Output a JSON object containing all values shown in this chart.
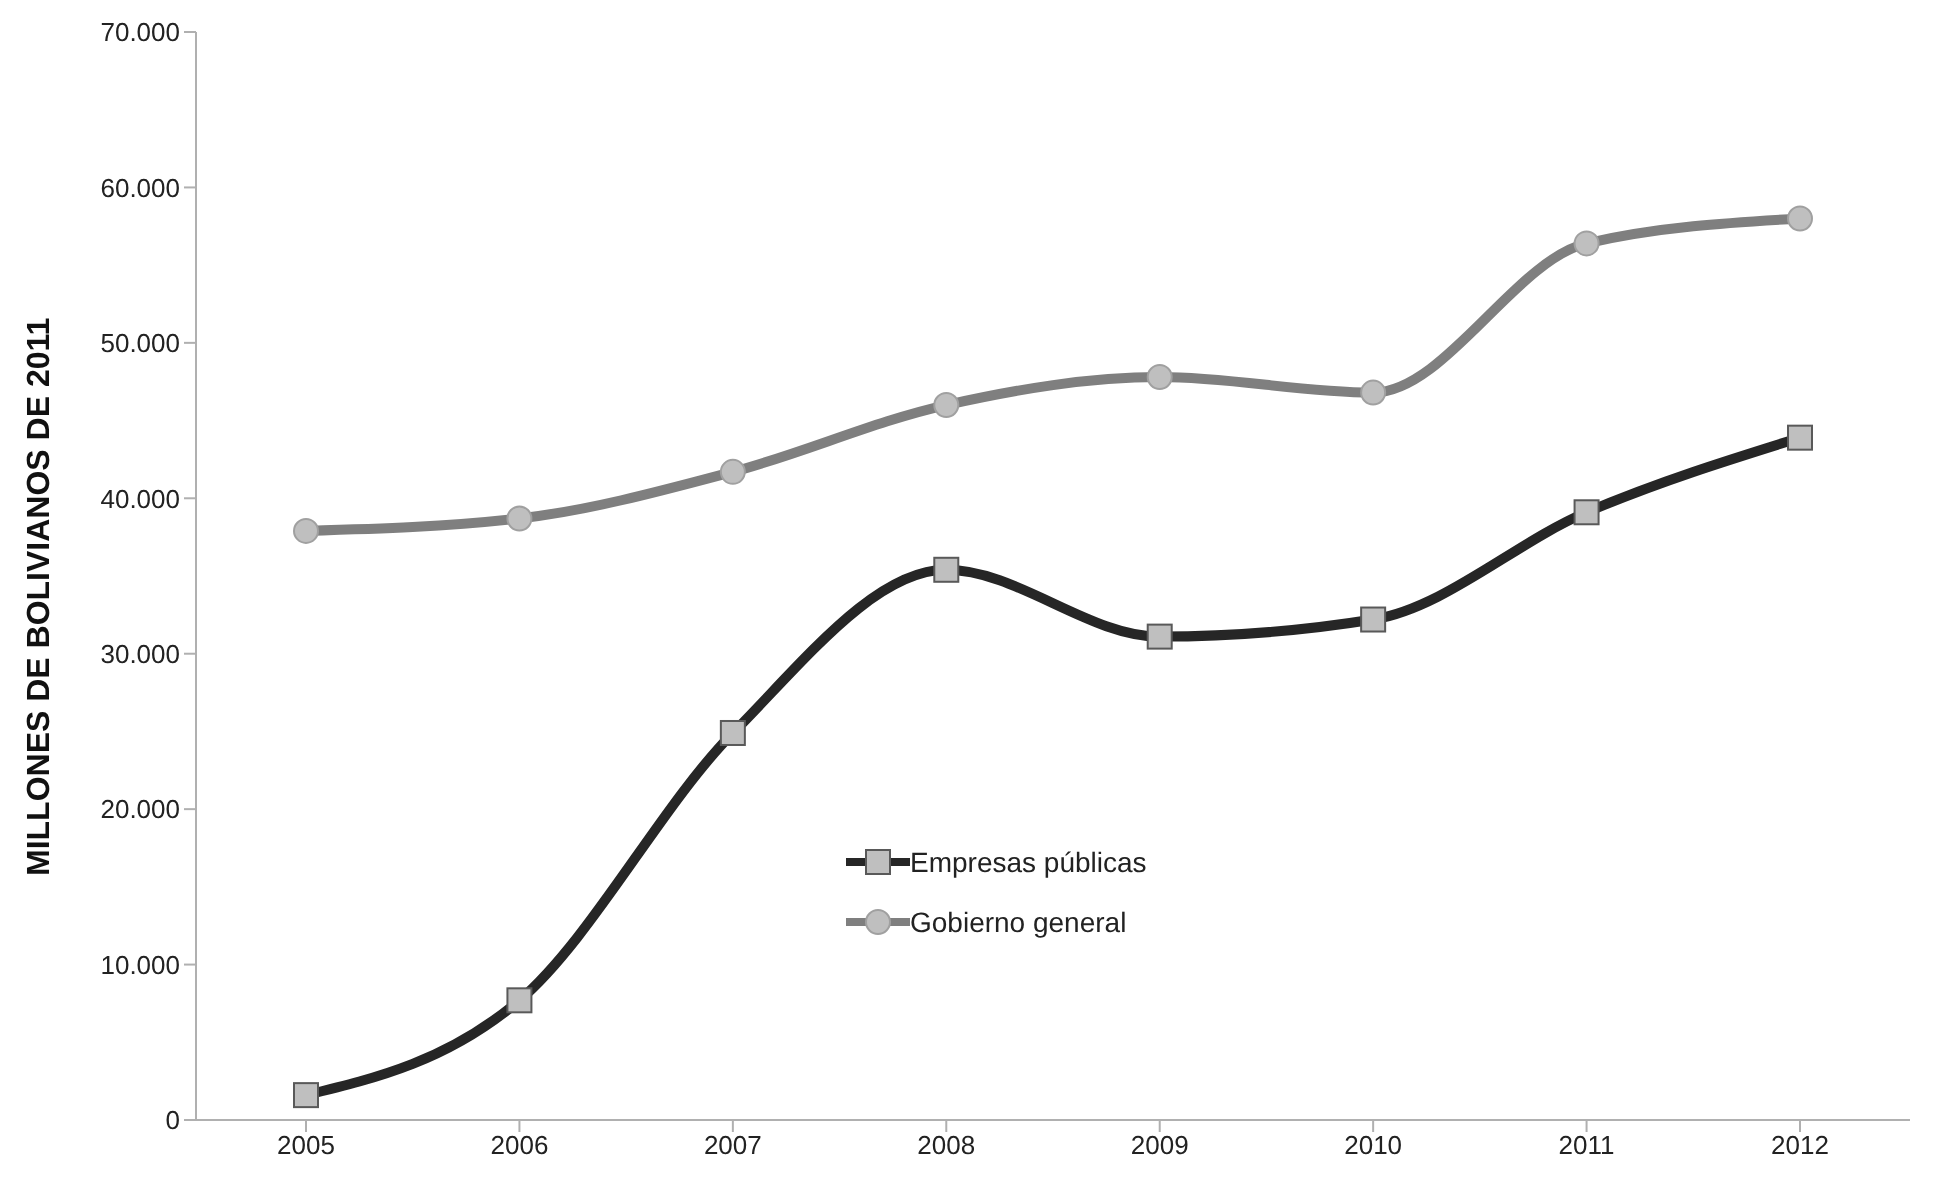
{
  "chart_data": {
    "type": "line",
    "ylabel": "MILLONES DE BOLIVIANOS DE 2011",
    "categories": [
      "2005",
      "2006",
      "2007",
      "2008",
      "2009",
      "2010",
      "2011",
      "2012"
    ],
    "series": [
      {
        "name": "Gobierno general",
        "color": "#7f7f7f",
        "marker": "circle",
        "values": [
          37900,
          38700,
          41700,
          46000,
          47800,
          46800,
          56400,
          58000
        ]
      },
      {
        "name": "Empresas públicas",
        "color": "#262626",
        "marker": "square",
        "values": [
          1600,
          7700,
          24900,
          35400,
          31100,
          32200,
          39100,
          43900
        ]
      }
    ],
    "ylim": [
      0,
      70000
    ],
    "yticks": [
      0,
      {
        "value": 10000,
        "label": "10.000"
      },
      {
        "value": 20000,
        "label": "20.000"
      },
      {
        "value": 30000,
        "label": "30.000"
      },
      {
        "value": 40000,
        "label": "40.000"
      },
      {
        "value": 50000,
        "label": "50.000"
      },
      {
        "value": 60000,
        "label": "60.000"
      },
      {
        "value": 70000,
        "label": "70.000"
      }
    ],
    "grid": false,
    "legend": "bottom",
    "line_style": "solid"
  }
}
